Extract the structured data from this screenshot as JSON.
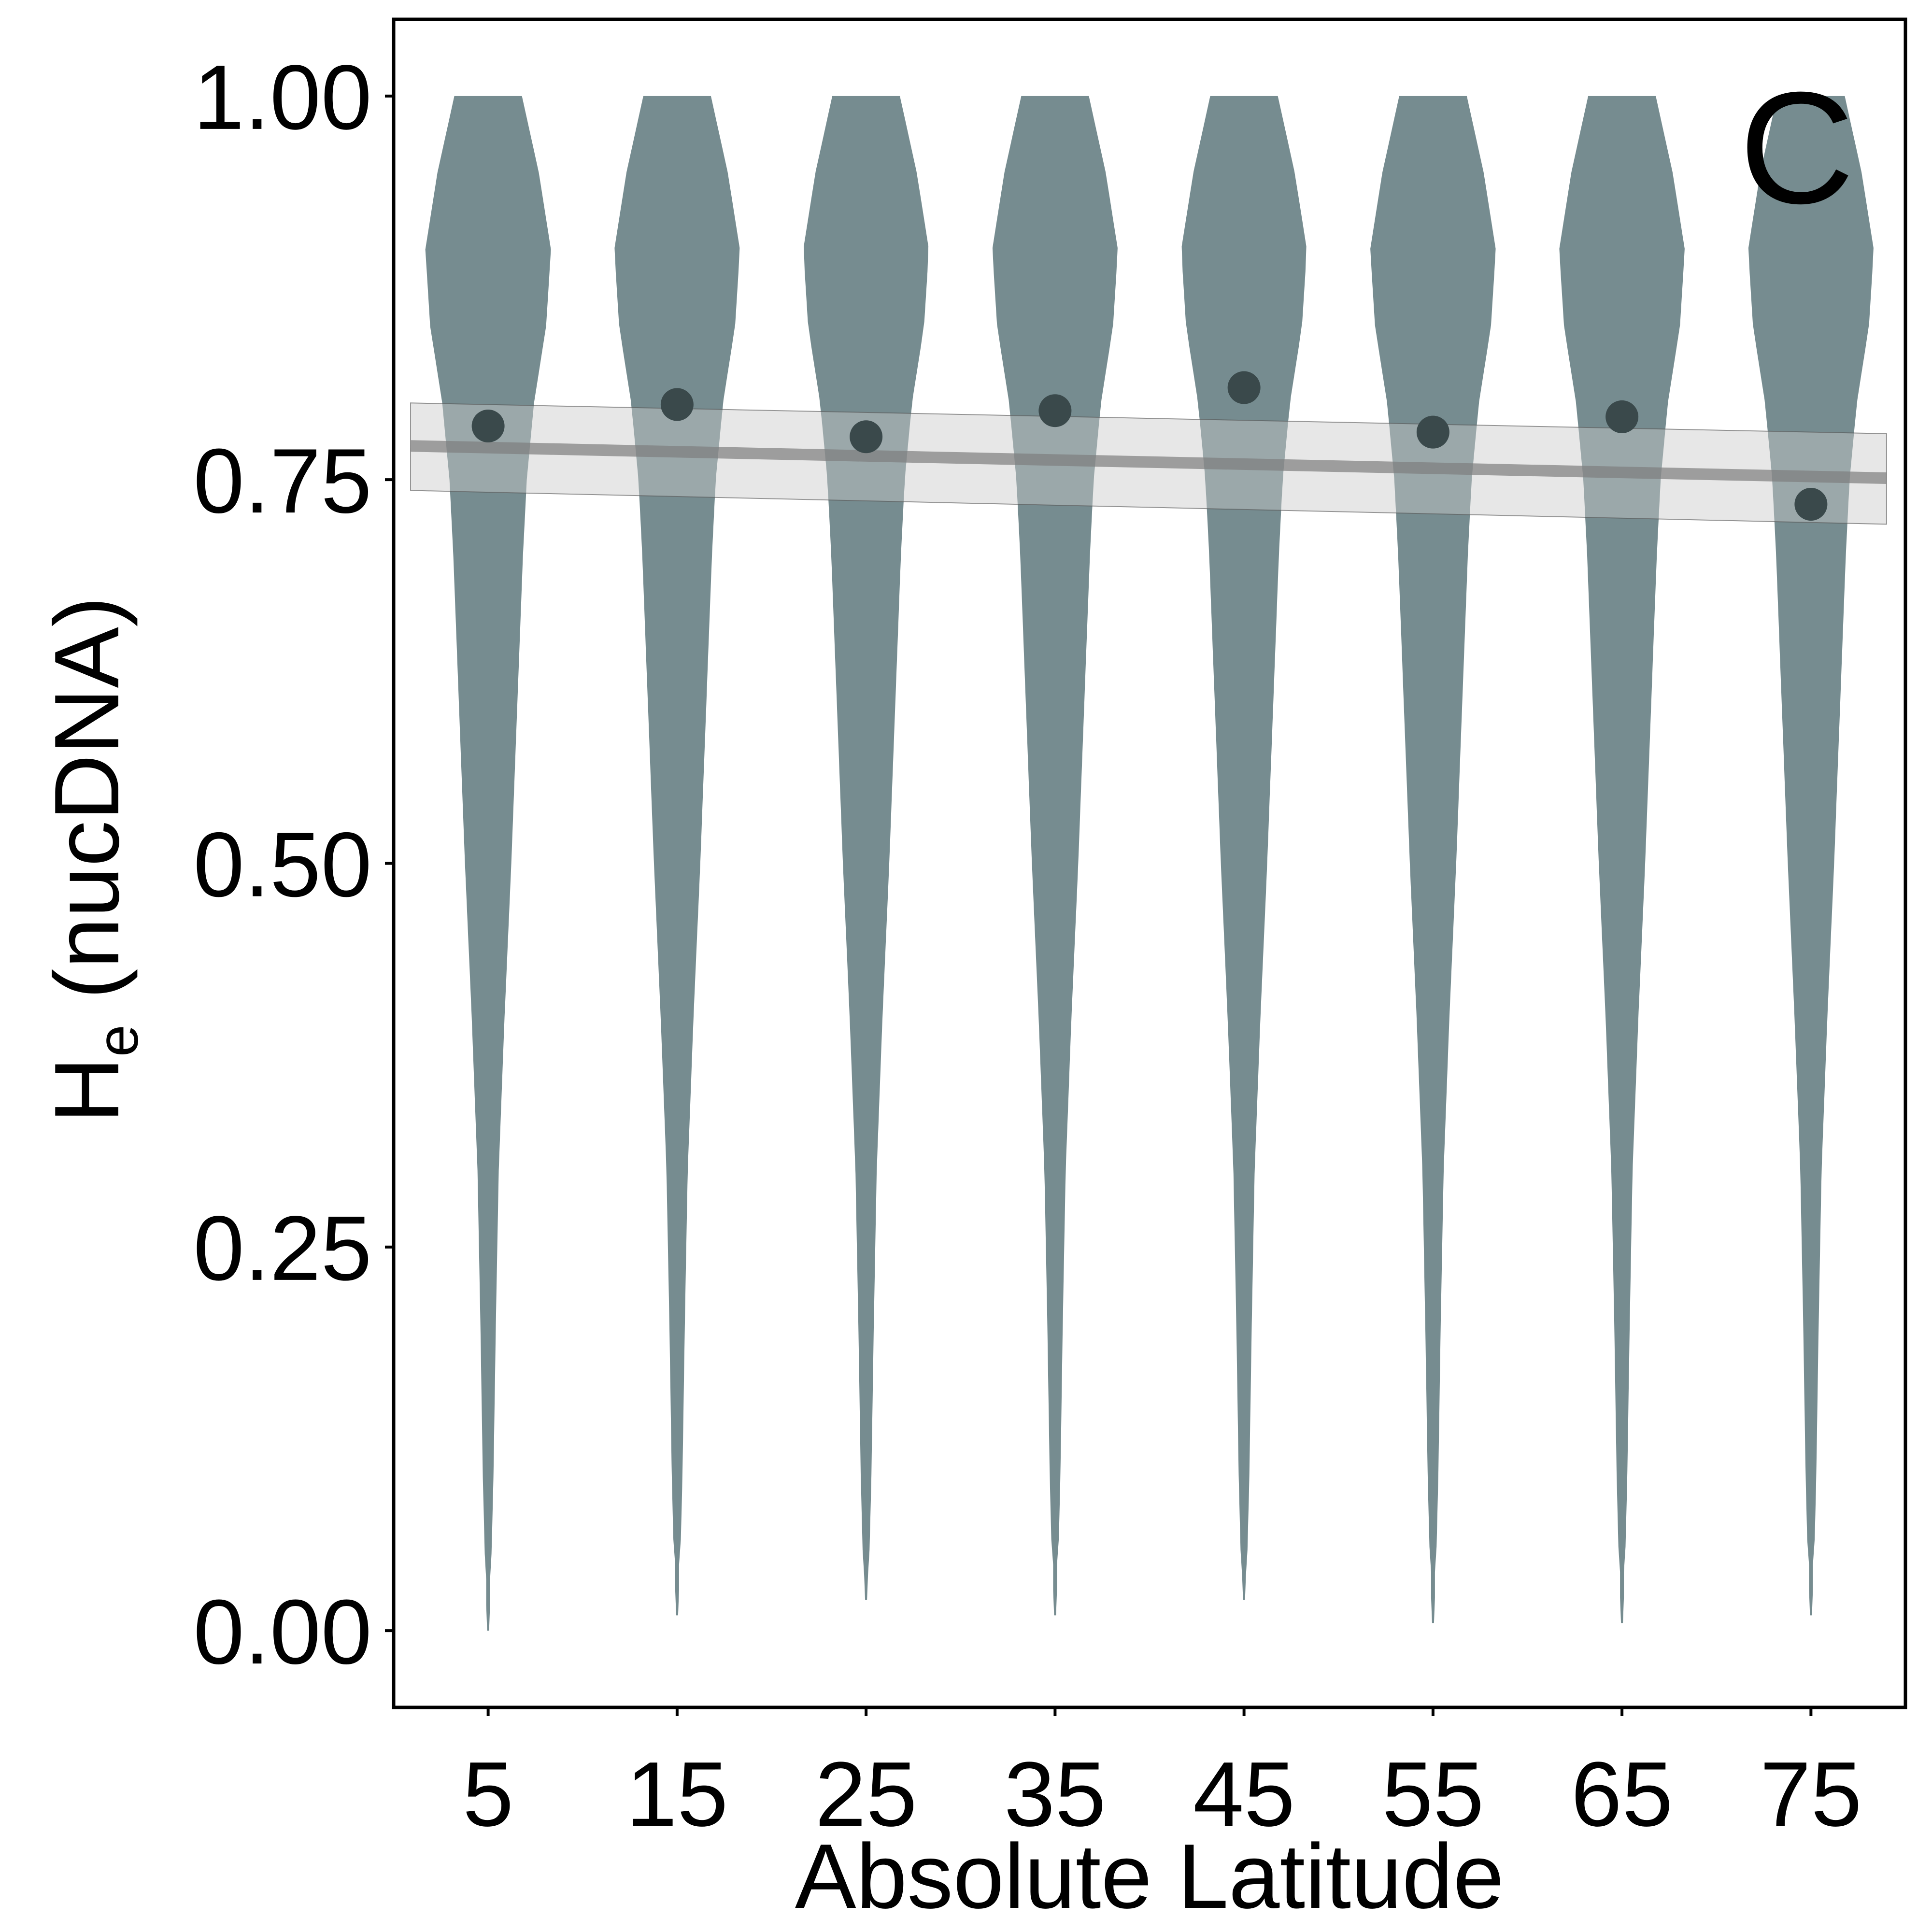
{
  "chart_data": {
    "type": "violin",
    "panel_label": "C",
    "xlabel": "Absolute Latitude",
    "ylabel": "H",
    "ylabel_subscript": "e",
    "ylabel_suffix": " (nucDNA)",
    "categories": [
      "5",
      "15",
      "25",
      "35",
      "45",
      "55",
      "65",
      "75"
    ],
    "x_values": [
      5,
      15,
      25,
      35,
      45,
      55,
      65,
      75
    ],
    "y_ticks": [
      {
        "value": 0.0,
        "label": "0.00"
      },
      {
        "value": 0.25,
        "label": "0.25"
      },
      {
        "value": 0.5,
        "label": "0.50"
      },
      {
        "value": 0.75,
        "label": "0.75"
      },
      {
        "value": 1.0,
        "label": "1.00"
      }
    ],
    "xlim": [
      0,
      80
    ],
    "ylim": [
      -0.05,
      1.05
    ],
    "grid": false,
    "legend": "none",
    "mean_points": [
      0.785,
      0.799,
      0.778,
      0.795,
      0.81,
      0.781,
      0.791,
      0.734
    ],
    "violin_ranges": [
      [
        0.0,
        1.0
      ],
      [
        0.01,
        1.0
      ],
      [
        0.02,
        1.0
      ],
      [
        0.01,
        1.0
      ],
      [
        0.02,
        1.0
      ],
      [
        0.005,
        1.0
      ],
      [
        0.005,
        1.0
      ],
      [
        0.01,
        1.0
      ]
    ],
    "trend_line": {
      "x": [
        0,
        79
      ],
      "y": [
        0.772,
        0.751
      ],
      "ci_upper": [
        0.8,
        0.78
      ],
      "ci_lower": [
        0.743,
        0.721
      ]
    },
    "colors": {
      "violin": "#768c90",
      "mean_point": "#3a494b",
      "trend_line": "#7d7d7d",
      "ci_band": "#c9c9c9"
    }
  }
}
